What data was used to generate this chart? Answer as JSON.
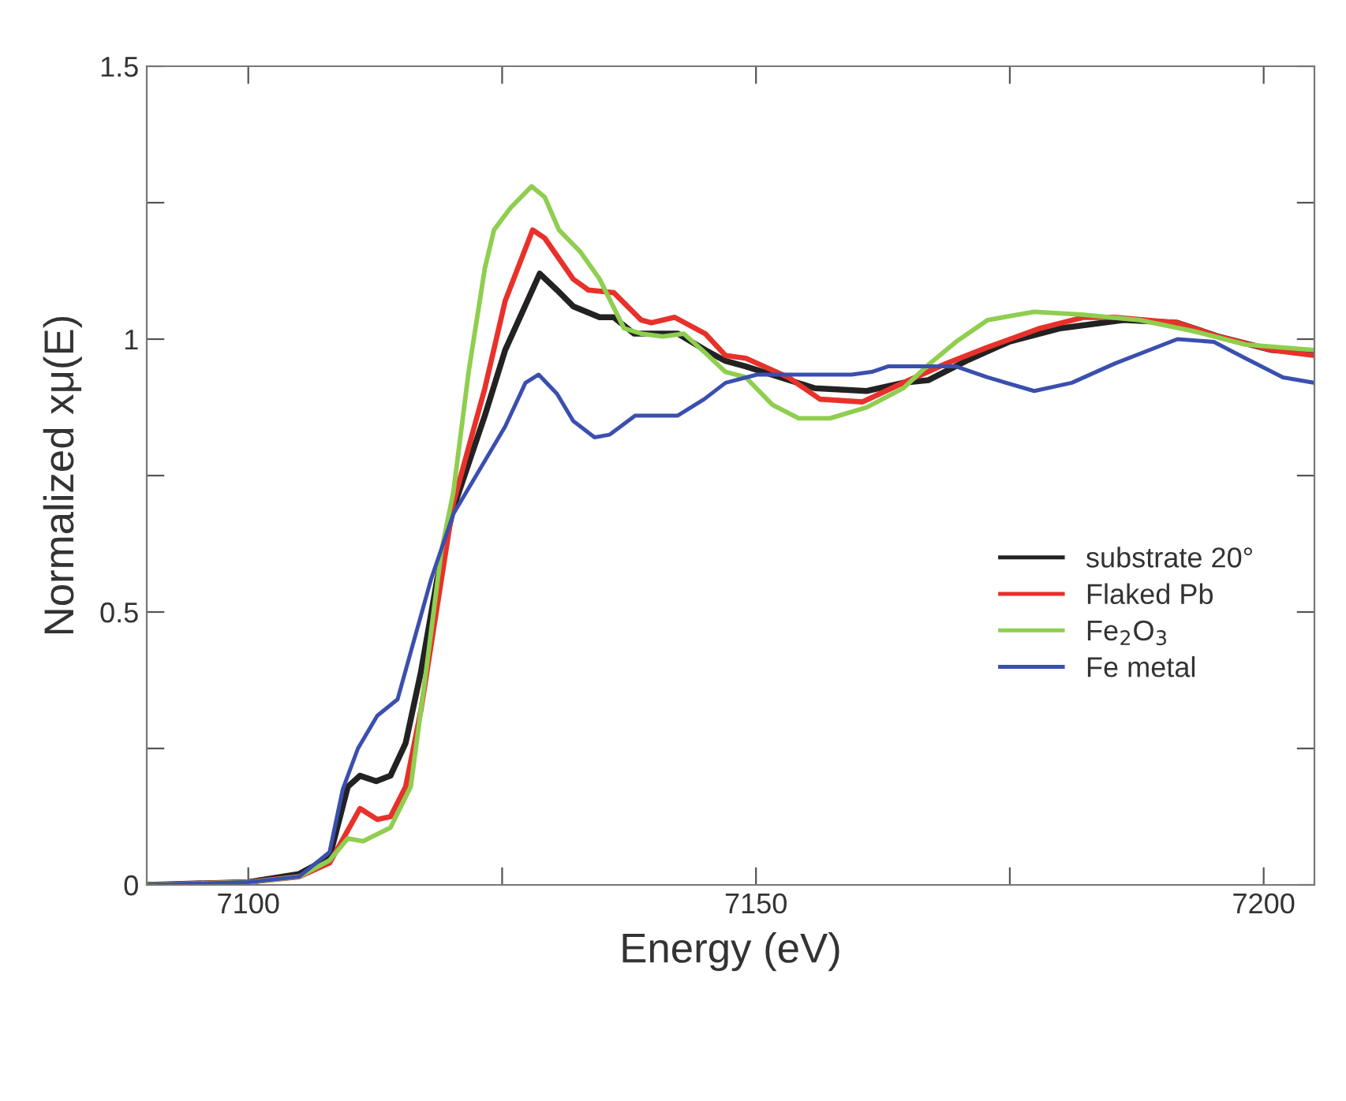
{
  "chart_data": {
    "type": "line",
    "xlabel": "Energy (eV)",
    "ylabel": "Normalized xμ(E)",
    "xlim": [
      7090,
      7205
    ],
    "ylim": [
      0,
      1.5
    ],
    "xticks": [
      7100,
      {
        "value": 7125,
        "label": null
      },
      7150,
      {
        "value": 7175,
        "label": null
      },
      7200
    ],
    "yticks": [
      0,
      {
        "value": 0.25,
        "label": null
      },
      0.5,
      {
        "value": 0.75,
        "label": null
      },
      1,
      {
        "value": 1.25,
        "label": null
      },
      1.5
    ],
    "grid": false,
    "legend": "right",
    "marker": "none",
    "line_style": "solid",
    "series": [
      {
        "name": "substrate 20°",
        "color": "#222222",
        "x": [
          7090,
          7100,
          7105,
          7108,
          7109.8,
          7111,
          7112.6,
          7114,
          7115.5,
          7117,
          7118.6,
          7120.2,
          7123.3,
          7125.3,
          7128.7,
          7130.4,
          7132,
          7134.6,
          7136,
          7138,
          7142.3,
          7145,
          7147,
          7149,
          7155.8,
          7160.9,
          7164.5,
          7167,
          7170.7,
          7174.9,
          7180,
          7186.2,
          7191.5,
          7195.5,
          7200.8,
          7205
        ],
        "values": [
          0,
          0.005,
          0.02,
          0.05,
          0.18,
          0.2,
          0.19,
          0.2,
          0.26,
          0.39,
          0.56,
          0.69,
          0.86,
          0.98,
          1.12,
          1.09,
          1.06,
          1.04,
          1.04,
          1.01,
          1.01,
          0.98,
          0.96,
          0.95,
          0.91,
          0.905,
          0.92,
          0.925,
          0.96,
          0.995,
          1.02,
          1.035,
          1.03,
          1.005,
          0.98,
          0.975
        ]
      },
      {
        "name": "Flaked Pb",
        "color": "#e8312a",
        "x": [
          7090,
          7100,
          7105,
          7108,
          7109.8,
          7111,
          7112.7,
          7114,
          7115.5,
          7117,
          7118.6,
          7120.2,
          7123.3,
          7125.3,
          7128,
          7129.2,
          7132,
          7133.5,
          7136,
          7138.7,
          7139.7,
          7142,
          7145,
          7147,
          7149,
          7153.2,
          7156.3,
          7160.5,
          7164.5,
          7168.7,
          7172.8,
          7178,
          7182.3,
          7185.3,
          7191.5,
          7195.5,
          7200.8,
          7205
        ],
        "values": [
          0,
          0.005,
          0.015,
          0.04,
          0.1,
          0.14,
          0.12,
          0.125,
          0.18,
          0.32,
          0.51,
          0.7,
          0.91,
          1.07,
          1.2,
          1.185,
          1.11,
          1.09,
          1.085,
          1.035,
          1.03,
          1.04,
          1.01,
          0.97,
          0.965,
          0.93,
          0.89,
          0.885,
          0.92,
          0.955,
          0.985,
          1.02,
          1.04,
          1.04,
          1.03,
          1.005,
          0.98,
          0.97
        ]
      },
      {
        "name": "Fe$_{2}$O$_{3}$",
        "color": "#8fce4f",
        "x": [
          7090,
          7100,
          7105,
          7108,
          7109.8,
          7111.3,
          7114,
          7116,
          7117.5,
          7119,
          7120.2,
          7121.7,
          7123.3,
          7124.2,
          7125.8,
          7127.9,
          7129.2,
          7130.6,
          7132.7,
          7134.6,
          7137,
          7138.7,
          7140.8,
          7142.9,
          7145,
          7147,
          7149,
          7151.6,
          7154.2,
          7157.3,
          7160.9,
          7164.5,
          7167.1,
          7169.7,
          7172.8,
          7177.4,
          7182.1,
          7187.8,
          7193,
          7198.2,
          7205
        ],
        "values": [
          0,
          0.005,
          0.015,
          0.045,
          0.085,
          0.08,
          0.105,
          0.18,
          0.39,
          0.61,
          0.72,
          0.94,
          1.13,
          1.2,
          1.24,
          1.28,
          1.26,
          1.2,
          1.16,
          1.11,
          1.02,
          1.01,
          1.005,
          1.01,
          0.975,
          0.94,
          0.93,
          0.88,
          0.855,
          0.855,
          0.875,
          0.91,
          0.955,
          0.995,
          1.035,
          1.05,
          1.045,
          1.035,
          1.015,
          0.99,
          0.98
        ]
      },
      {
        "name": "Fe metal",
        "color": "#3a4fae",
        "x": [
          7090,
          7100,
          7105,
          7108,
          7109.3,
          7110.8,
          7112.7,
          7114.7,
          7116.2,
          7118,
          7120.2,
          7122.6,
          7125.3,
          7127.3,
          7128.6,
          7130.4,
          7132,
          7134.1,
          7135.6,
          7138.1,
          7140.2,
          7142.3,
          7144.9,
          7147,
          7150.1,
          7159.4,
          7161.4,
          7163,
          7169.7,
          7172.8,
          7177.4,
          7181.1,
          7185.3,
          7191.5,
          7195.1,
          7198.2,
          7201.9,
          7205
        ],
        "values": [
          0,
          0.005,
          0.015,
          0.06,
          0.175,
          0.25,
          0.31,
          0.34,
          0.44,
          0.56,
          0.68,
          0.755,
          0.84,
          0.92,
          0.935,
          0.9,
          0.85,
          0.82,
          0.825,
          0.86,
          0.86,
          0.86,
          0.89,
          0.92,
          0.935,
          0.935,
          0.94,
          0.95,
          0.95,
          0.93,
          0.905,
          0.92,
          0.955,
          1.0,
          0.995,
          0.965,
          0.93,
          0.92
        ]
      }
    ]
  }
}
